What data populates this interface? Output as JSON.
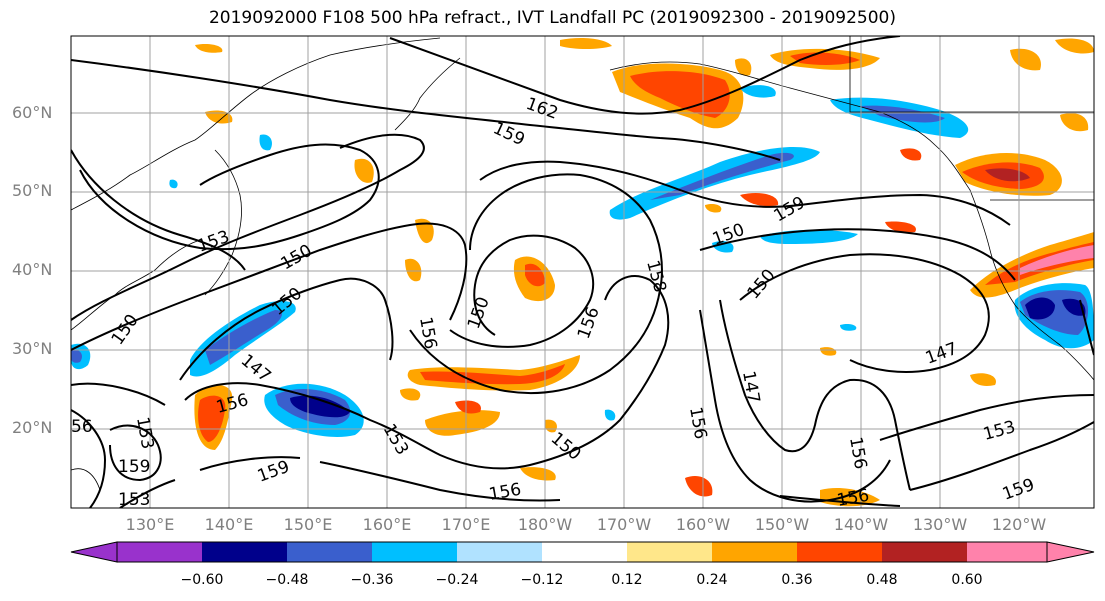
{
  "title": "2019092000 F108 500 hPa refract., IVT Landfall PC (2019092300 - 2019092500)",
  "lat_labels": [
    "60°N",
    "50°N",
    "40°N",
    "30°N",
    "20°N"
  ],
  "lon_labels": [
    "130°E",
    "140°E",
    "150°E",
    "160°E",
    "170°E",
    "180°W",
    "170°W",
    "160°W",
    "150°W",
    "140°W",
    "130°W",
    "120°W"
  ],
  "contour_labels": [
    "162",
    "159",
    "159",
    "153",
    "150",
    "150",
    "150",
    "147",
    "156",
    "159",
    "153",
    "156",
    "150",
    "156",
    "150",
    "158",
    "150",
    "147",
    "156",
    "150",
    "156",
    "147",
    "153",
    "156",
    "159",
    "156",
    "153",
    "159",
    "153",
    "56"
  ],
  "colorbar": {
    "ticks": [
      "−0.60",
      "−0.48",
      "−0.36",
      "−0.24",
      "−0.12",
      "0.12",
      "0.24",
      "0.36",
      "0.48",
      "0.60"
    ],
    "colors": [
      "#9932cc",
      "#00008b",
      "#3a5fcd",
      "#00bfff",
      "#b0e2ff",
      "#ffffff",
      "#ffe78a",
      "#ffa500",
      "#ff4500",
      "#b22222",
      "#ff82ab"
    ]
  },
  "colors": {
    "contour": "#000000",
    "grid": "#a0a0a0",
    "label_gray": "#808080"
  }
}
